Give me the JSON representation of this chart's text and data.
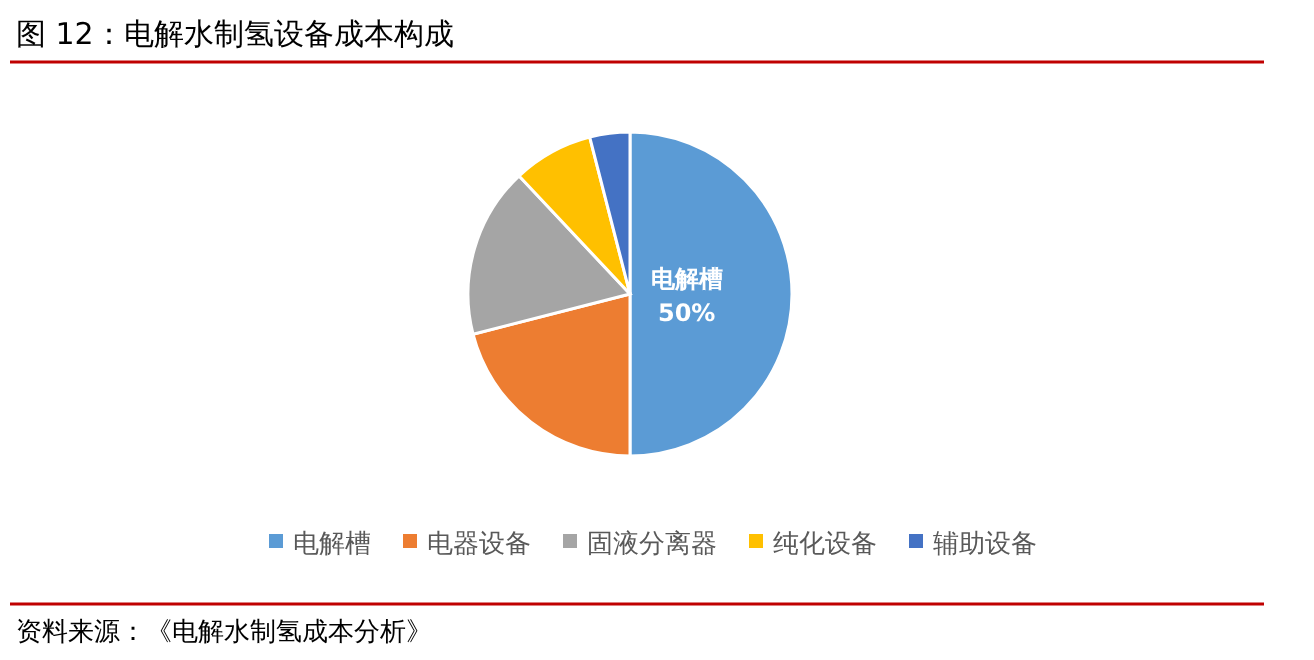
{
  "chart_data": {
    "type": "pie",
    "title": "图 12：电解水制氢设备成本构成",
    "categories": [
      "电解槽",
      "电器设备",
      "固液分离器",
      "纯化设备",
      "辅助设备"
    ],
    "values": [
      50,
      21,
      17,
      8,
      4
    ],
    "colors": [
      "#5b9bd5",
      "#ed7d31",
      "#a5a5a5",
      "#ffc000",
      "#4472c4"
    ],
    "value_labels": [
      "电解槽\n50%",
      null,
      null,
      null,
      null
    ],
    "legend": "bottom",
    "annotations": [
      "资料来源：《电解水制氢成本分析》"
    ]
  }
}
